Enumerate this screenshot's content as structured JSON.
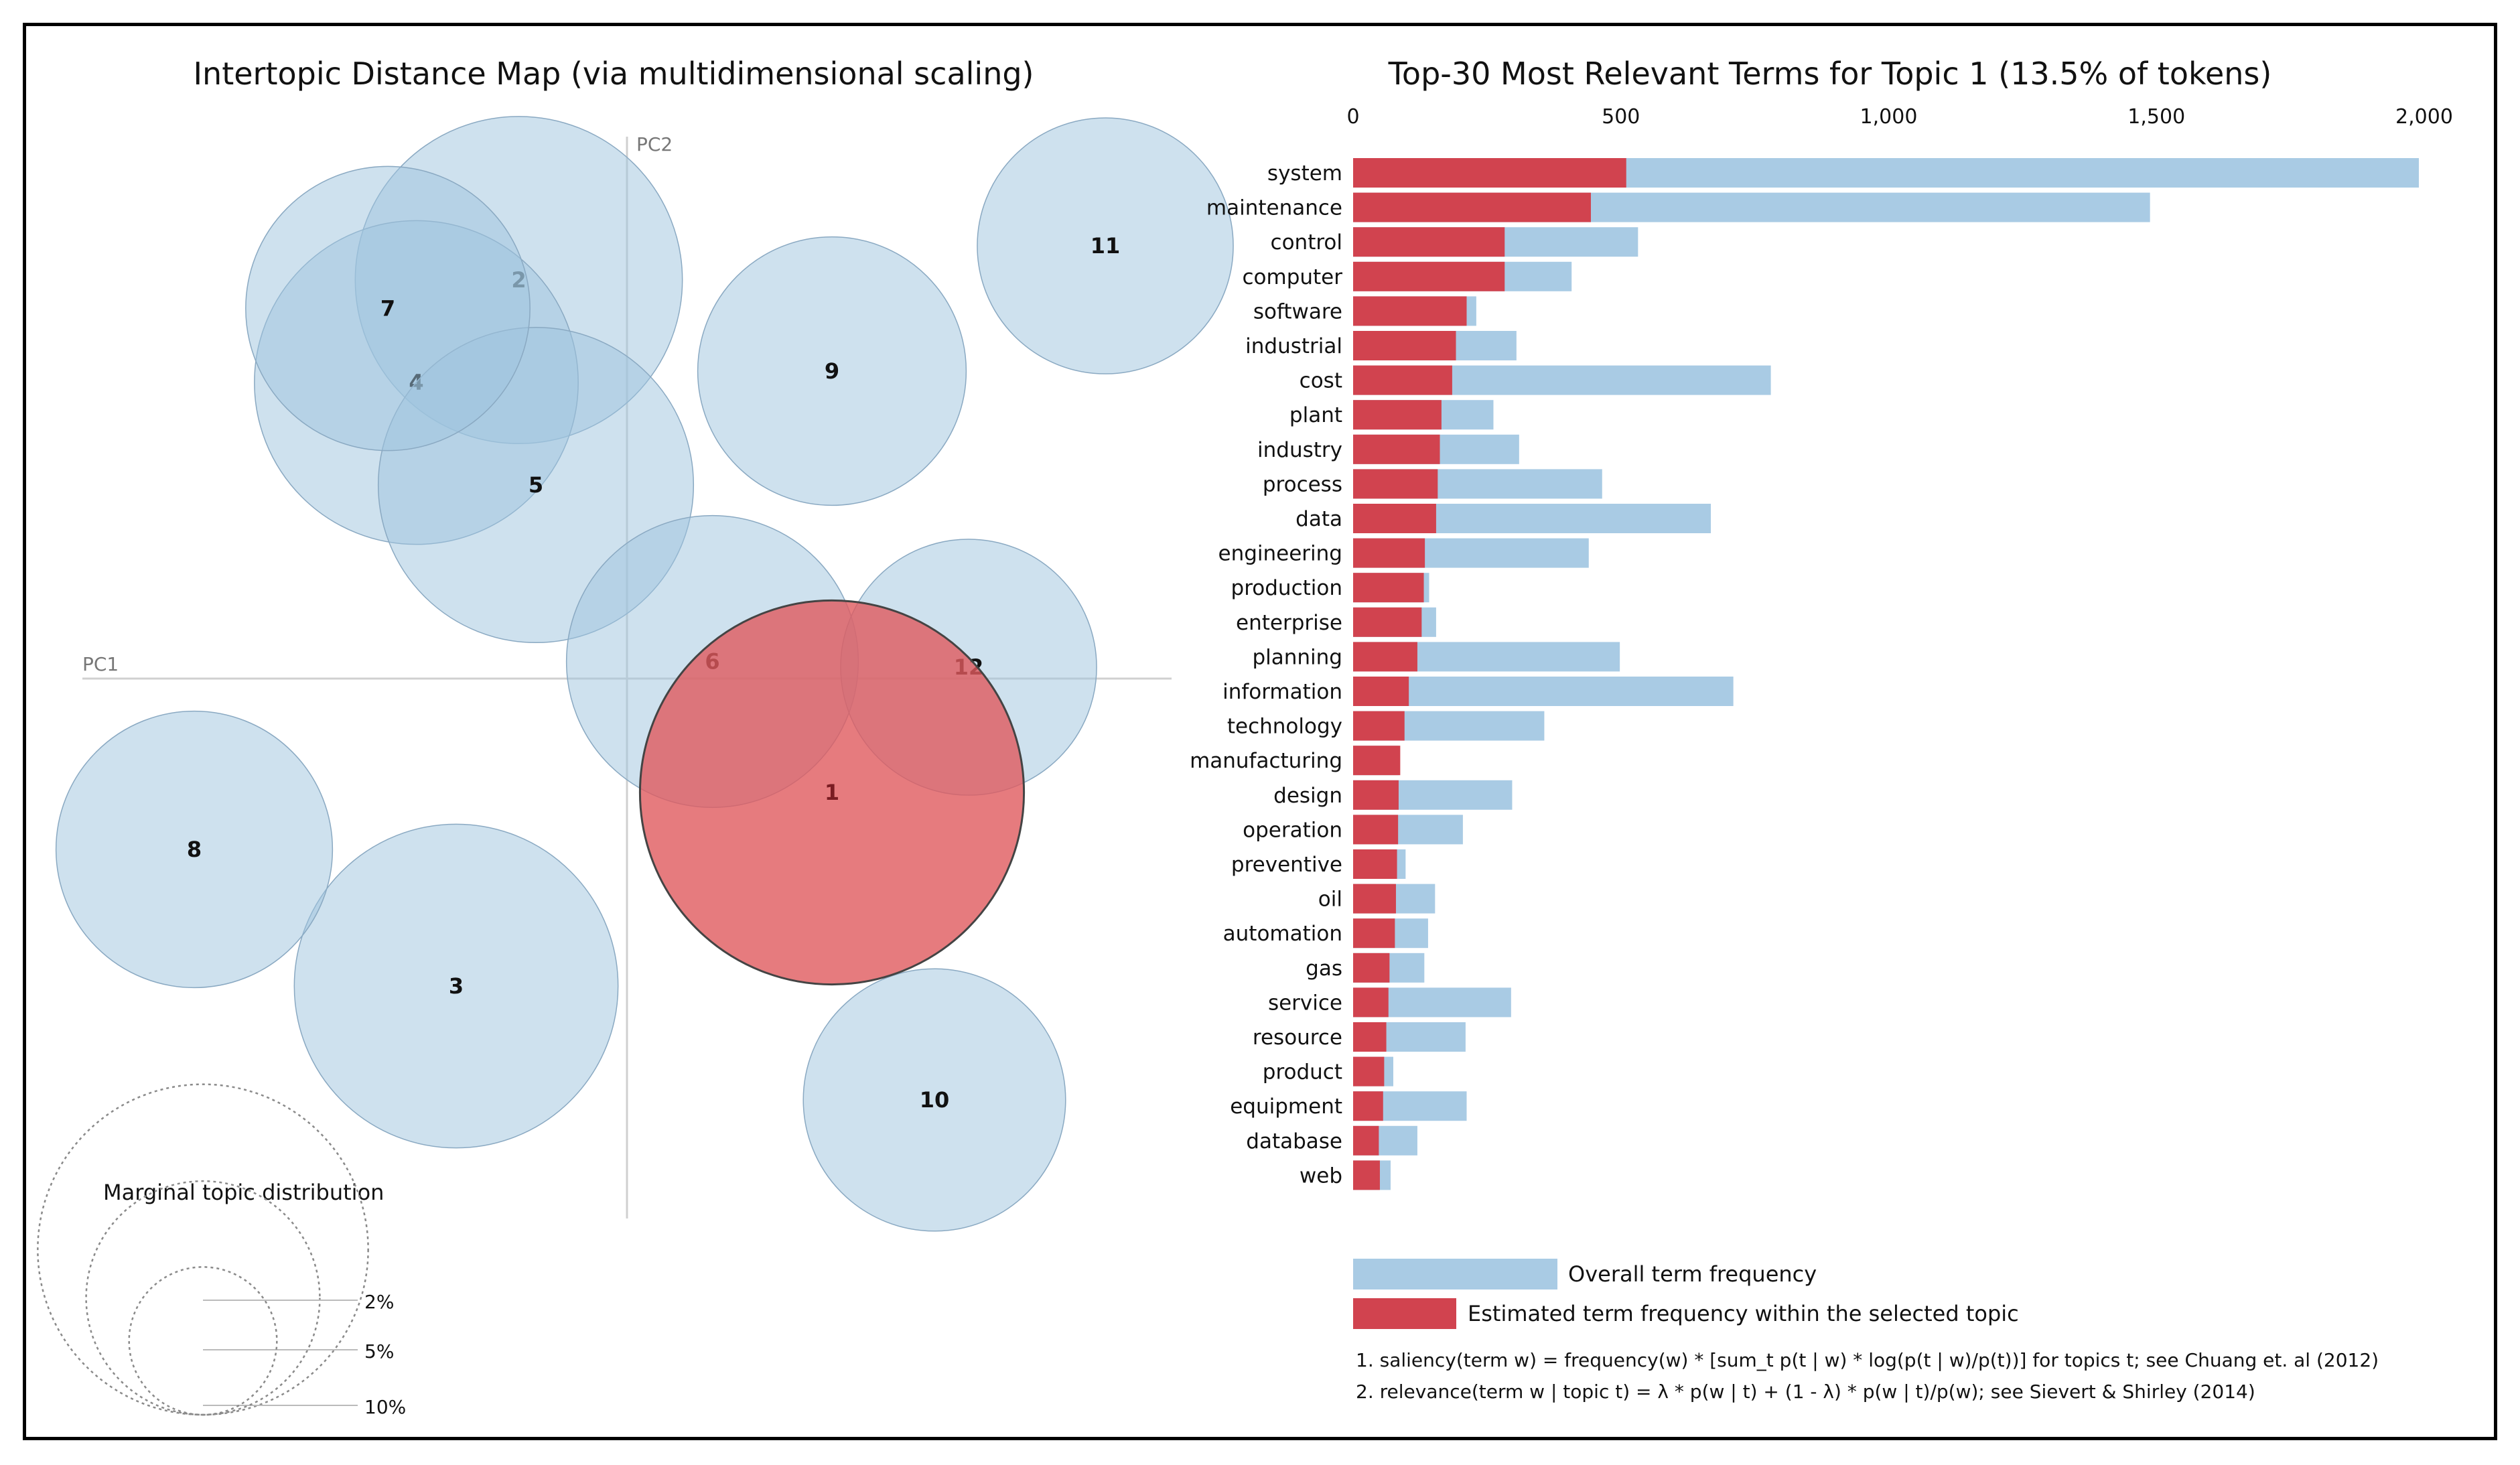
{
  "colors": {
    "bubble": "#9ec3de",
    "bubble_stroke": "#8aa9c2",
    "selected_bubble": "#e05a5e",
    "overall_bar": "#a9cbe4",
    "topic_bar": "#d1434f",
    "axis_line": "#d0d0d0",
    "text": "#111111",
    "dim_text": "#777777"
  },
  "chart_data": [
    {
      "type": "scatter",
      "title": "Intertopic Distance Map (via multidimensional scaling)",
      "xlabel": "PC1",
      "ylabel": "PC2",
      "selected_topic": "1",
      "topics": [
        {
          "label": "1",
          "x": 0.36,
          "y": -0.2,
          "size": 13.5
        },
        {
          "label": "2",
          "x": -0.19,
          "y": 0.7,
          "size": 9.8
        },
        {
          "label": "3",
          "x": -0.3,
          "y": -0.54,
          "size": 9.6
        },
        {
          "label": "4",
          "x": -0.37,
          "y": 0.52,
          "size": 9.6
        },
        {
          "label": "5",
          "x": -0.16,
          "y": 0.34,
          "size": 9.1
        },
        {
          "label": "6",
          "x": 0.15,
          "y": 0.03,
          "size": 7.8
        },
        {
          "label": "7",
          "x": -0.42,
          "y": 0.65,
          "size": 7.4
        },
        {
          "label": "8",
          "x": -0.76,
          "y": -0.3,
          "size": 7.0
        },
        {
          "label": "9",
          "x": 0.36,
          "y": 0.54,
          "size": 6.6
        },
        {
          "label": "10",
          "x": 0.54,
          "y": -0.74,
          "size": 6.3
        },
        {
          "label": "11",
          "x": 0.84,
          "y": 0.76,
          "size": 6.0
        },
        {
          "label": "12",
          "x": 0.6,
          "y": 0.02,
          "size": 6.0
        }
      ],
      "legend": {
        "title": "Marginal topic distribution",
        "levels": [
          "2%",
          "5%",
          "10%"
        ]
      }
    },
    {
      "type": "bar",
      "orientation": "horizontal",
      "title": "Top-30 Most Relevant Terms for Topic 1 (13.5% of tokens)",
      "xlim": [
        0,
        2000
      ],
      "ticks": [
        {
          "value": 0,
          "label": "0"
        },
        {
          "value": 500,
          "label": "500"
        },
        {
          "value": 1000,
          "label": "1,000"
        },
        {
          "value": 1500,
          "label": "1,500"
        },
        {
          "value": 2000,
          "label": "2,000"
        }
      ],
      "categories": [
        "system",
        "maintenance",
        "control",
        "computer",
        "software",
        "industrial",
        "cost",
        "plant",
        "industry",
        "process",
        "data",
        "engineering",
        "production",
        "enterprise",
        "planning",
        "information",
        "technology",
        "manufacturing",
        "design",
        "operation",
        "preventive",
        "oil",
        "automation",
        "gas",
        "service",
        "resource",
        "product",
        "equipment",
        "database",
        "web"
      ],
      "series": [
        {
          "name": "Overall term frequency",
          "values": [
            1990,
            1488,
            532,
            408,
            230,
            305,
            780,
            262,
            310,
            465,
            668,
            440,
            142,
            155,
            498,
            710,
            357,
            85,
            297,
            205,
            98,
            153,
            140,
            133,
            295,
            210,
            75,
            212,
            120,
            70
          ]
        },
        {
          "name": "Estimated term frequency within the selected topic",
          "values": [
            510,
            444,
            283,
            283,
            212,
            192,
            185,
            165,
            162,
            158,
            155,
            134,
            132,
            128,
            120,
            104,
            96,
            88,
            85,
            84,
            82,
            80,
            78,
            68,
            66,
            62,
            58,
            56,
            48,
            50
          ]
        }
      ]
    }
  ],
  "footnotes": [
    "1. saliency(term w) = frequency(w) * [sum_t p(t | w) * log(p(t | w)/p(t))] for topics t; see Chuang et. al (2012)",
    "2. relevance(term w | topic t) = λ * p(w | t) + (1 - λ) * p(w | t)/p(w); see Sievert & Shirley (2014)"
  ]
}
